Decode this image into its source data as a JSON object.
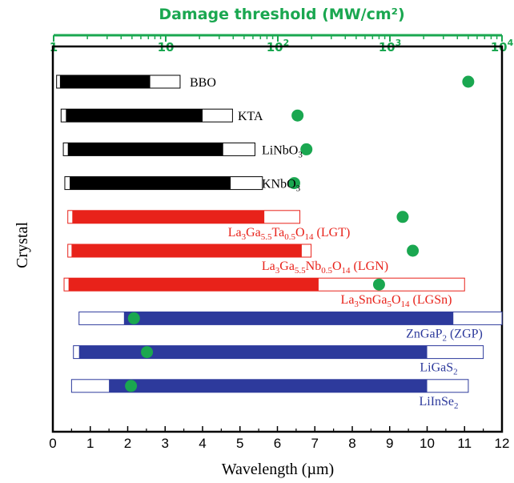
{
  "chart_data": {
    "type": "bar",
    "ylabel": "Crystal",
    "xlabel": "Wavelength (µm)",
    "xlim": [
      0,
      12
    ],
    "x_ticks": [
      "0",
      "1",
      "2",
      "3",
      "4",
      "5",
      "6",
      "7",
      "8",
      "9",
      "10",
      "11",
      "12"
    ],
    "top_axis": {
      "label": "Damage threshold (MW/cm²)",
      "scale": "log",
      "range": [
        1,
        10000
      ],
      "ticks": [
        {
          "value": 1,
          "base": "1",
          "exp": ""
        },
        {
          "value": 10,
          "base": "10",
          "exp": ""
        },
        {
          "value": 100,
          "base": "10",
          "exp": "2"
        },
        {
          "value": 1000,
          "base": "10",
          "exp": "3"
        },
        {
          "value": 10000,
          "base": "10",
          "exp": "4"
        }
      ]
    },
    "crystals": [
      {
        "label": "BBO",
        "label_html": "BBO",
        "color": "#000000",
        "transparency": [
          0.1,
          3.4
        ],
        "highlight": [
          0.19,
          2.6
        ],
        "damage_threshold": 5000
      },
      {
        "label": "KTA",
        "label_html": "KTA",
        "color": "#000000",
        "transparency": [
          0.22,
          4.8
        ],
        "highlight": [
          0.35,
          4.0
        ],
        "damage_threshold": 150
      },
      {
        "label": "LiNbO3",
        "label_html": "LiNbO<tspan dy=\"4\" font-size=\"11\">3</tspan>",
        "color": "#000000",
        "transparency": [
          0.28,
          5.4
        ],
        "highlight": [
          0.4,
          4.55
        ],
        "damage_threshold": 180
      },
      {
        "label": "KNbO3",
        "label_html": "KNbO<tspan dy=\"4\" font-size=\"11\">3</tspan>",
        "color": "#000000",
        "transparency": [
          0.32,
          5.6
        ],
        "highlight": [
          0.45,
          4.75
        ],
        "damage_threshold": 140
      },
      {
        "label": "La3Ga5.5Ta0.5O14 (LGT)",
        "label_html": "La<tspan dy=\"4\" font-size=\"11\">3</tspan><tspan dy=\"-4\">Ga</tspan><tspan dy=\"4\" font-size=\"11\">5.5</tspan><tspan dy=\"-4\">Ta</tspan><tspan dy=\"4\" font-size=\"11\">0.5</tspan><tspan dy=\"-4\">O</tspan><tspan dy=\"4\" font-size=\"11\">14</tspan><tspan dy=\"-4\"> (LGT)</tspan>",
        "color": "#e8221a",
        "transparency": [
          0.4,
          6.6
        ],
        "highlight": [
          0.52,
          5.65
        ],
        "damage_threshold": 1300
      },
      {
        "label": "La3Ga5.5Nb0.5O14 (LGN)",
        "label_html": "La<tspan dy=\"4\" font-size=\"11\">3</tspan><tspan dy=\"-4\">Ga</tspan><tspan dy=\"4\" font-size=\"11\">5.5</tspan><tspan dy=\"-4\">Nb</tspan><tspan dy=\"4\" font-size=\"11\">0.5</tspan><tspan dy=\"-4\">O</tspan><tspan dy=\"4\" font-size=\"11\">14</tspan><tspan dy=\"-4\"> (LGN)</tspan>",
        "color": "#e8221a",
        "transparency": [
          0.4,
          6.9
        ],
        "highlight": [
          0.5,
          6.65
        ],
        "damage_threshold": 1600
      },
      {
        "label": "La3SnGa5O14 (LGSn)",
        "label_html": "La<tspan dy=\"4\" font-size=\"11\">3</tspan><tspan dy=\"-4\">SnGa</tspan><tspan dy=\"4\" font-size=\"11\">5</tspan><tspan dy=\"-4\">O</tspan><tspan dy=\"4\" font-size=\"11\">14</tspan><tspan dy=\"-4\"> (LGSn)</tspan>",
        "color": "#e8221a",
        "transparency": [
          0.3,
          11.0
        ],
        "highlight": [
          0.42,
          7.1
        ],
        "damage_threshold": 800
      },
      {
        "label": "ZnGaP2 (ZGP)",
        "label_html": "ZnGaP<tspan dy=\"4\" font-size=\"11\">2</tspan><tspan dy=\"-4\"> (ZGP)</tspan>",
        "color": "#2d3a9c",
        "transparency": [
          0.7,
          12.0
        ],
        "highlight": [
          1.9,
          10.7
        ],
        "damage_threshold": 5.2
      },
      {
        "label": "LiGaS2",
        "label_html": "LiGaS<tspan dy=\"4\" font-size=\"11\">2</tspan>",
        "color": "#2d3a9c",
        "transparency": [
          0.55,
          11.5
        ],
        "highlight": [
          0.7,
          10.0
        ],
        "damage_threshold": 6.8
      },
      {
        "label": "LiInSe2",
        "label_html": "LiInSe<tspan dy=\"4\" font-size=\"11\">2</tspan>",
        "color": "#2d3a9c",
        "transparency": [
          0.5,
          11.1
        ],
        "highlight": [
          1.5,
          10.0
        ],
        "damage_threshold": 4.9
      }
    ],
    "colors": {
      "threshold_marker": "#1aa750",
      "top_axis": "#1aa750"
    }
  }
}
